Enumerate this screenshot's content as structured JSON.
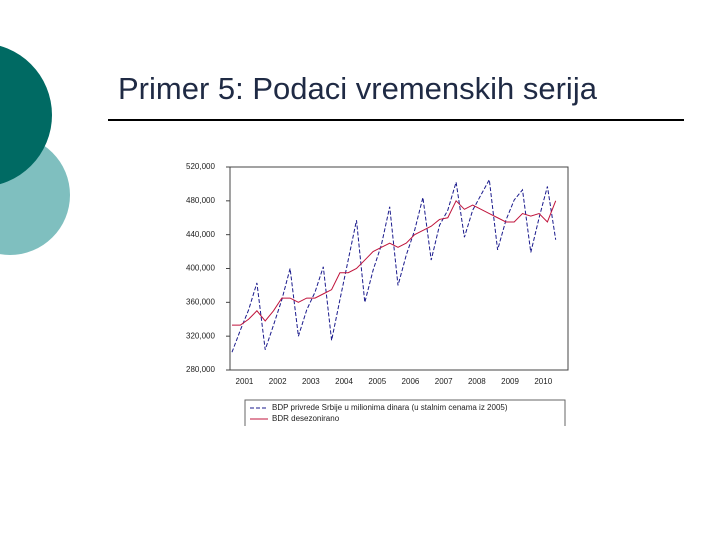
{
  "title": "Primer 5: Podaci vremenskih serija",
  "chart_data": {
    "type": "line",
    "categories": [
      null,
      "2001",
      null,
      null,
      null,
      "2002",
      null,
      null,
      null,
      "2003",
      null,
      null,
      null,
      "2004",
      null,
      null,
      null,
      "2005",
      null,
      null,
      null,
      "2006",
      null,
      null,
      null,
      "2007",
      null,
      null,
      null,
      "2008",
      null,
      null,
      null,
      "2009",
      null,
      null,
      null,
      "2010",
      null,
      null
    ],
    "ylim": [
      280000,
      520000
    ],
    "yticks": [
      {
        "value": 280000,
        "label": "280,000"
      },
      {
        "value": 320000,
        "label": "320,000"
      },
      {
        "value": 360000,
        "label": "360,000"
      },
      {
        "value": 400000,
        "label": "400,000"
      },
      {
        "value": 440000,
        "label": "440,000"
      },
      {
        "value": 480000,
        "label": "480,000"
      },
      {
        "value": 520000,
        "label": "520,000"
      }
    ],
    "series": [
      {
        "name": "BDP privrede Srbije u milionima dinara (u stalnim cenama iz 2005)",
        "color": "#1a1a8c",
        "dashed": true,
        "values": [
          301000,
          327000,
          351000,
          383000,
          304000,
          333000,
          363000,
          400000,
          320000,
          351000,
          372000,
          402000,
          315000,
          363000,
          410000,
          457000,
          360000,
          398000,
          428000,
          473000,
          380000,
          416000,
          445000,
          484000,
          410000,
          451000,
          469000,
          502000,
          437000,
          469000,
          487000,
          505000,
          422000,
          457000,
          481000,
          493000,
          419000,
          460000,
          497000,
          434000
        ]
      },
      {
        "name": "BDR desezonirano",
        "color": "#c0143c",
        "dashed": false,
        "values": [
          333000,
          333000,
          340000,
          350000,
          338000,
          350000,
          365000,
          365000,
          360000,
          365000,
          365000,
          370000,
          375000,
          395000,
          395000,
          400000,
          410000,
          420000,
          425000,
          430000,
          425000,
          430000,
          440000,
          445000,
          450000,
          458000,
          460000,
          480000,
          470000,
          475000,
          470000,
          465000,
          460000,
          455000,
          455000,
          465000,
          462000,
          465000,
          455000,
          480000
        ]
      }
    ]
  }
}
